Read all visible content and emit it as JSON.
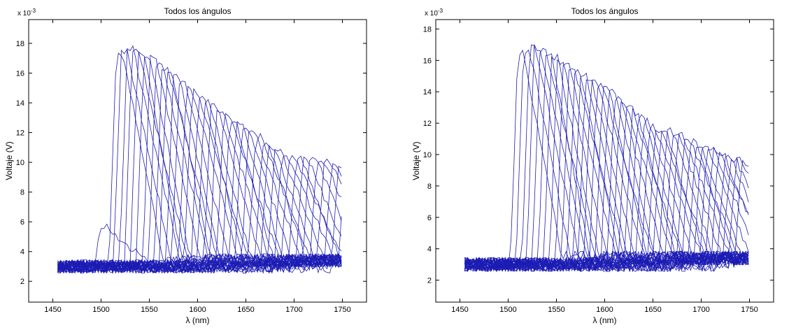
{
  "chart_data": [
    {
      "type": "line",
      "title": "Todos los ángulos",
      "xlabel": "λ (nm)",
      "ylabel": "Voltaje (V)",
      "y_exponent_label": "x 10",
      "y_exponent": "-3",
      "xlim": [
        1425,
        1775
      ],
      "ylim": [
        0.6,
        19.6
      ],
      "x_ticks": [
        1450,
        1500,
        1550,
        1600,
        1650,
        1700,
        1750
      ],
      "y_ticks": [
        2,
        4,
        6,
        8,
        10,
        12,
        14,
        16,
        18
      ],
      "x_range": [
        1455,
        1750
      ],
      "line_color": "#1c1cb4",
      "grid": false,
      "series_count": 38,
      "baseline": 3.0,
      "rise_wavelengths": [
        1500,
        1516,
        1521,
        1527,
        1532,
        1538,
        1544,
        1551,
        1557,
        1563,
        1568,
        1575,
        1581,
        1588,
        1594,
        1601,
        1607,
        1614,
        1620,
        1627,
        1633,
        1640,
        1646,
        1653,
        1660,
        1667,
        1673,
        1680,
        1687,
        1694,
        1702,
        1709,
        1716,
        1724,
        1731,
        1739,
        1746,
        1753
      ],
      "peak_voltages": [
        5.6,
        17.3,
        17.5,
        17.6,
        17.6,
        17.5,
        17.3,
        17.0,
        16.6,
        16.3,
        16.0,
        15.7,
        15.4,
        15.0,
        14.7,
        14.4,
        14.0,
        13.8,
        13.5,
        13.2,
        12.9,
        12.7,
        12.4,
        12.0,
        11.7,
        11.3,
        11.0,
        10.8,
        10.5,
        10.3,
        10.2,
        10.2,
        10.3,
        10.2,
        10.0,
        9.8,
        9.6,
        9.5
      ]
    },
    {
      "type": "line",
      "title": "Todos los ángulos",
      "xlabel": "λ (nm)",
      "ylabel": "Voltaje (V)",
      "y_exponent_label": "x 10",
      "y_exponent": "-3",
      "xlim": [
        1425,
        1775
      ],
      "ylim": [
        0.6,
        18.6
      ],
      "x_ticks": [
        1450,
        1500,
        1550,
        1600,
        1650,
        1700,
        1750
      ],
      "y_ticks": [
        2,
        4,
        6,
        8,
        10,
        12,
        14,
        16,
        18
      ],
      "x_range": [
        1455,
        1750
      ],
      "line_color": "#1c1cb4",
      "grid": false,
      "series_count": 40,
      "baseline": 3.0,
      "rise_wavelengths": [
        1510,
        1516,
        1522,
        1527,
        1533,
        1539,
        1545,
        1551,
        1557,
        1563,
        1569,
        1575,
        1580,
        1586,
        1592,
        1598,
        1604,
        1610,
        1616,
        1622,
        1628,
        1634,
        1640,
        1646,
        1652,
        1658,
        1664,
        1670,
        1676,
        1682,
        1688,
        1694,
        1700,
        1706,
        1712,
        1718,
        1724,
        1730,
        1736,
        1742
      ],
      "peak_voltages": [
        16.4,
        16.7,
        16.9,
        16.8,
        16.7,
        16.4,
        16.2,
        15.9,
        15.6,
        15.4,
        15.2,
        15.0,
        14.9,
        14.7,
        14.4,
        14.3,
        14.1,
        13.6,
        13.3,
        13.0,
        12.7,
        12.4,
        12.1,
        11.8,
        11.5,
        11.5,
        11.6,
        11.4,
        11.2,
        11.0,
        10.8,
        10.6,
        10.5,
        10.4,
        10.2,
        10.1,
        9.9,
        9.7,
        9.6,
        9.4
      ]
    }
  ]
}
